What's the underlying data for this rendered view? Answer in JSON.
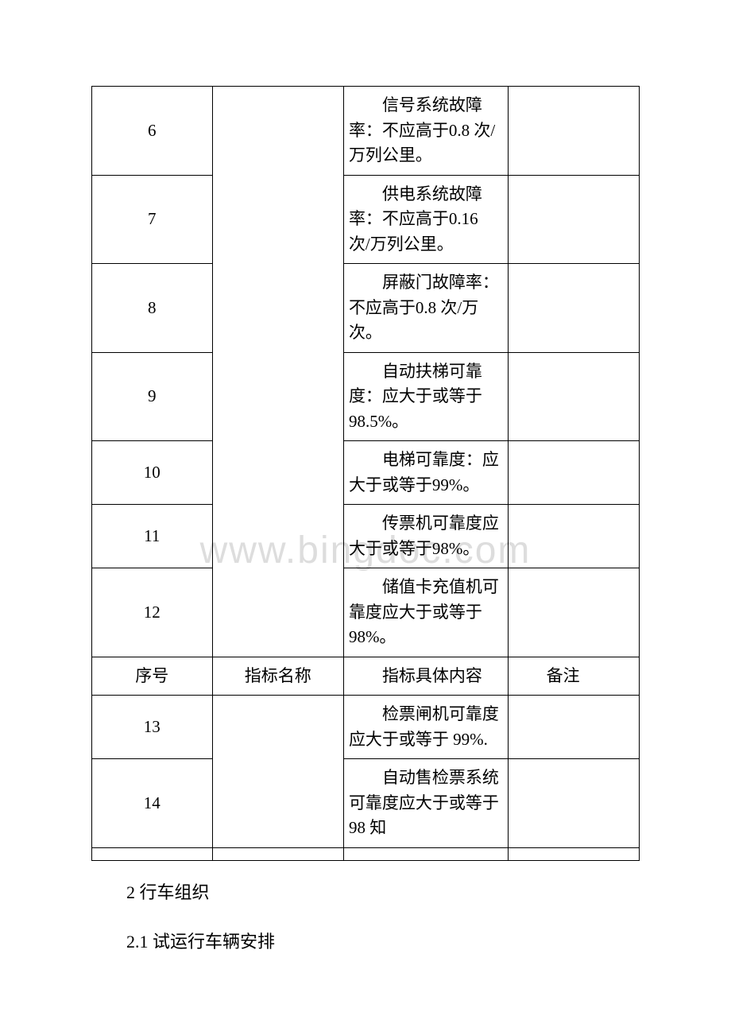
{
  "watermark": "www.bingdoc.com",
  "table": {
    "rows": [
      {
        "num": "6",
        "name": "",
        "content": "信号系统故障率：不应高于0.8 次/万列公里。",
        "note": "",
        "col2_border": "first"
      },
      {
        "num": "7",
        "name": "",
        "content": "供电系统故障率：不应高于0.16 次/万列公里。",
        "note": "",
        "col2_border": "mid"
      },
      {
        "num": "8",
        "name": "",
        "content": "屏蔽门故障率：不应高于0.8 次/万次。",
        "note": "",
        "col2_border": "mid"
      },
      {
        "num": "9",
        "name": "",
        "content": "自动扶梯可靠度：应大于或等于 98.5%。",
        "note": "",
        "col2_border": "mid"
      },
      {
        "num": "10",
        "name": "",
        "content": "电梯可靠度：应大于或等于99%。",
        "note": "",
        "col2_border": "mid"
      },
      {
        "num": "11",
        "name": "",
        "content": "传票机可靠度应大于或等于98%。",
        "note": "",
        "col2_border": "mid"
      },
      {
        "num": "12",
        "name": "",
        "content": "储值卡充值机可靠度应大于或等于 98%。",
        "note": "",
        "col2_border": "last"
      },
      {
        "num": "序号",
        "name": "指标名称",
        "content": "指标具体内容",
        "note": "备注",
        "is_header": true
      },
      {
        "num": "13",
        "name": "",
        "content": "检票闸机可靠度应大于或等于 99%.",
        "note": "",
        "col2_border": "first"
      },
      {
        "num": "14",
        "name": "",
        "content": "自动售检票系统可靠度应大于或等于 98 知",
        "note": "",
        "col2_border": "last"
      }
    ]
  },
  "body_paragraphs": [
    "2 行车组织",
    "2.1 试运行车辆安排"
  ]
}
